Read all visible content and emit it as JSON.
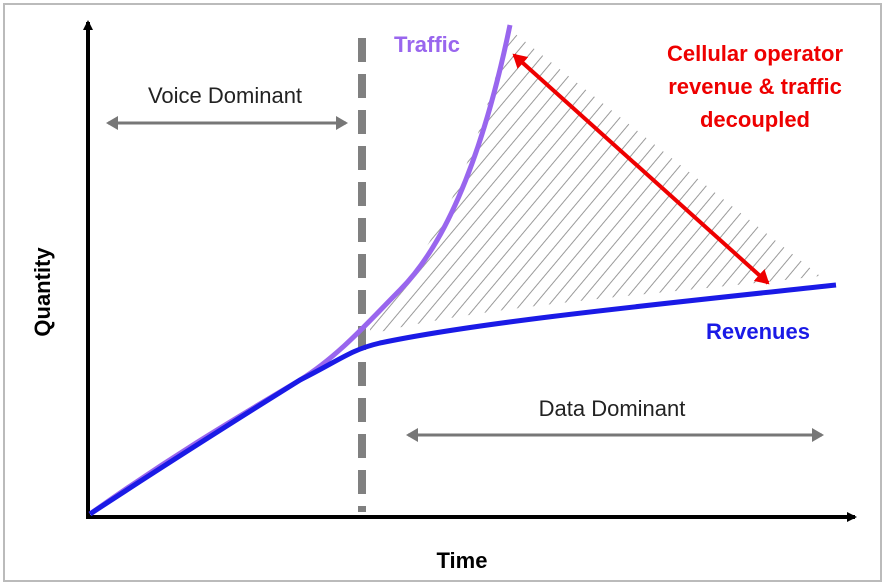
{
  "axes": {
    "y_label": "Quantity",
    "x_label": "Time"
  },
  "regions": {
    "voice": "Voice Dominant",
    "data": "Data Dominant"
  },
  "curves": {
    "traffic": "Traffic",
    "revenues": "Revenues"
  },
  "annotation": {
    "lines": [
      "Cellular operator",
      "revenue & traffic",
      "decoupled"
    ]
  }
}
